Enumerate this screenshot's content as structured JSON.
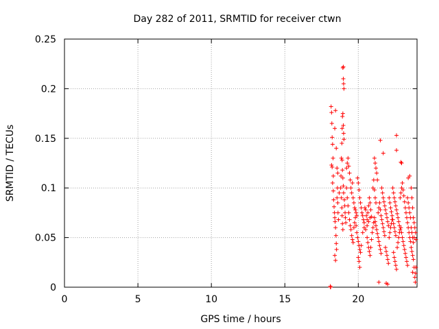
{
  "chart_data": {
    "type": "scatter",
    "title": "Day 282 of 2011, SRMTID for receiver ctwn",
    "xlabel": "GPS time / hours",
    "ylabel": "SRMTID / TECUs",
    "xlim": [
      0,
      24
    ],
    "ylim": [
      0,
      0.25
    ],
    "xticks": [
      0,
      5,
      10,
      15,
      20
    ],
    "yticks": [
      0,
      0.05,
      0.1,
      0.15,
      0.2,
      0.25
    ],
    "xtick_labels": [
      "0",
      "5",
      "10",
      "15",
      "20"
    ],
    "ytick_labels": [
      "0",
      "0.05",
      "0.1",
      "0.15",
      "0.2",
      "0.25"
    ],
    "grid": true,
    "marker": "+",
    "series_color": "#ff0000",
    "grid_color": "#a0a0a0",
    "series": [
      {
        "name": "SRMTID",
        "points": [
          [
            18.1,
            0.0
          ],
          [
            18.1,
            0.001
          ],
          [
            18.12,
            0.0
          ],
          [
            18.15,
            0.182
          ],
          [
            18.18,
            0.176
          ],
          [
            18.2,
            0.165
          ],
          [
            18.22,
            0.151
          ],
          [
            18.25,
            0.144
          ],
          [
            18.18,
            0.123
          ],
          [
            18.22,
            0.121
          ],
          [
            18.28,
            0.13
          ],
          [
            18.3,
            0.112
          ],
          [
            18.25,
            0.105
          ],
          [
            18.3,
            0.097
          ],
          [
            18.32,
            0.088
          ],
          [
            18.35,
            0.081
          ],
          [
            18.38,
            0.075
          ],
          [
            18.4,
            0.07
          ],
          [
            18.42,
            0.066
          ],
          [
            18.45,
            0.06
          ],
          [
            18.48,
            0.052
          ],
          [
            18.5,
            0.044
          ],
          [
            18.52,
            0.038
          ],
          [
            18.4,
            0.032
          ],
          [
            18.45,
            0.027
          ],
          [
            18.55,
            0.09
          ],
          [
            18.58,
            0.1
          ],
          [
            18.6,
            0.085
          ],
          [
            18.62,
            0.075
          ],
          [
            18.65,
            0.068
          ],
          [
            18.4,
            0.16
          ],
          [
            18.45,
            0.178
          ],
          [
            18.5,
            0.14
          ],
          [
            18.55,
            0.12
          ],
          [
            18.6,
            0.115
          ],
          [
            18.7,
            0.095
          ],
          [
            18.8,
            0.1
          ],
          [
            18.82,
            0.112
          ],
          [
            18.85,
            0.13
          ],
          [
            18.88,
            0.145
          ],
          [
            18.9,
            0.16
          ],
          [
            18.92,
            0.172
          ],
          [
            18.95,
            0.175
          ],
          [
            18.98,
            0.163
          ],
          [
            19.0,
            0.155
          ],
          [
            19.02,
            0.149
          ],
          [
            18.95,
            0.221
          ],
          [
            18.98,
            0.222
          ],
          [
            18.98,
            0.21
          ],
          [
            19.0,
            0.205
          ],
          [
            19.02,
            0.2
          ],
          [
            18.9,
            0.128
          ],
          [
            18.92,
            0.118
          ],
          [
            18.95,
            0.11
          ],
          [
            18.98,
            0.102
          ],
          [
            19.0,
            0.095
          ],
          [
            19.05,
            0.088
          ],
          [
            19.08,
            0.082
          ],
          [
            19.1,
            0.075
          ],
          [
            19.12,
            0.07
          ],
          [
            19.15,
            0.065
          ],
          [
            18.85,
            0.09
          ],
          [
            18.88,
            0.08
          ],
          [
            18.9,
            0.072
          ],
          [
            18.92,
            0.064
          ],
          [
            18.95,
            0.058
          ],
          [
            19.2,
            0.12
          ],
          [
            19.25,
            0.125
          ],
          [
            19.3,
            0.13
          ],
          [
            19.35,
            0.122
          ],
          [
            19.4,
            0.115
          ],
          [
            19.45,
            0.108
          ],
          [
            19.5,
            0.1
          ],
          [
            19.55,
            0.095
          ],
          [
            19.6,
            0.105
          ],
          [
            19.65,
            0.09
          ],
          [
            19.7,
            0.085
          ],
          [
            19.75,
            0.08
          ],
          [
            19.8,
            0.078
          ],
          [
            19.85,
            0.075
          ],
          [
            19.9,
            0.072
          ],
          [
            19.2,
            0.1
          ],
          [
            19.25,
            0.09
          ],
          [
            19.3,
            0.082
          ],
          [
            19.35,
            0.075
          ],
          [
            19.4,
            0.068
          ],
          [
            19.45,
            0.062
          ],
          [
            19.5,
            0.058
          ],
          [
            19.55,
            0.052
          ],
          [
            19.6,
            0.048
          ],
          [
            19.65,
            0.045
          ],
          [
            19.7,
            0.06
          ],
          [
            19.75,
            0.065
          ],
          [
            19.8,
            0.07
          ],
          [
            19.85,
            0.062
          ],
          [
            19.9,
            0.055
          ],
          [
            19.95,
            0.05
          ],
          [
            20.0,
            0.046
          ],
          [
            20.05,
            0.042
          ],
          [
            20.1,
            0.038
          ],
          [
            20.15,
            0.035
          ],
          [
            19.95,
            0.11
          ],
          [
            20.0,
            0.105
          ],
          [
            20.05,
            0.098
          ],
          [
            20.1,
            0.09
          ],
          [
            20.15,
            0.085
          ],
          [
            20.2,
            0.08
          ],
          [
            20.25,
            0.075
          ],
          [
            20.3,
            0.072
          ],
          [
            20.35,
            0.068
          ],
          [
            20.4,
            0.065
          ],
          [
            20.0,
            0.03
          ],
          [
            20.05,
            0.026
          ],
          [
            20.1,
            0.02
          ],
          [
            20.2,
            0.042
          ],
          [
            20.3,
            0.055
          ],
          [
            20.4,
            0.06
          ],
          [
            20.5,
            0.058
          ],
          [
            20.6,
            0.062
          ],
          [
            20.7,
            0.066
          ],
          [
            20.8,
            0.07
          ],
          [
            20.45,
            0.08
          ],
          [
            20.5,
            0.078
          ],
          [
            20.55,
            0.072
          ],
          [
            20.6,
            0.068
          ],
          [
            20.65,
            0.075
          ],
          [
            20.7,
            0.082
          ],
          [
            20.75,
            0.09
          ],
          [
            20.8,
            0.085
          ],
          [
            20.85,
            0.078
          ],
          [
            20.9,
            0.071
          ],
          [
            20.6,
            0.05
          ],
          [
            20.65,
            0.045
          ],
          [
            20.7,
            0.04
          ],
          [
            20.75,
            0.036
          ],
          [
            20.8,
            0.032
          ],
          [
            20.85,
            0.04
          ],
          [
            20.9,
            0.048
          ],
          [
            20.95,
            0.055
          ],
          [
            21.0,
            0.06
          ],
          [
            21.05,
            0.065
          ],
          [
            21.0,
            0.1
          ],
          [
            21.05,
            0.108
          ],
          [
            21.1,
            0.098
          ],
          [
            21.15,
            0.09
          ],
          [
            21.2,
            0.085
          ],
          [
            21.1,
            0.13
          ],
          [
            21.15,
            0.125
          ],
          [
            21.2,
            0.12
          ],
          [
            21.25,
            0.115
          ],
          [
            21.3,
            0.108
          ],
          [
            21.1,
            0.07
          ],
          [
            21.15,
            0.066
          ],
          [
            21.2,
            0.062
          ],
          [
            21.25,
            0.058
          ],
          [
            21.3,
            0.054
          ],
          [
            21.35,
            0.05
          ],
          [
            21.4,
            0.046
          ],
          [
            21.45,
            0.042
          ],
          [
            21.5,
            0.038
          ],
          [
            21.55,
            0.034
          ],
          [
            21.35,
            0.075
          ],
          [
            21.4,
            0.08
          ],
          [
            21.45,
            0.085
          ],
          [
            21.5,
            0.078
          ],
          [
            21.55,
            0.072
          ],
          [
            21.6,
            0.068
          ],
          [
            21.65,
            0.064
          ],
          [
            21.7,
            0.06
          ],
          [
            21.75,
            0.056
          ],
          [
            21.8,
            0.052
          ],
          [
            21.5,
            0.148
          ],
          [
            21.7,
            0.135
          ],
          [
            21.4,
            0.005
          ],
          [
            21.9,
            0.004
          ],
          [
            22.0,
            0.003
          ],
          [
            21.6,
            0.1
          ],
          [
            21.65,
            0.095
          ],
          [
            21.7,
            0.09
          ],
          [
            21.75,
            0.086
          ],
          [
            21.8,
            0.082
          ],
          [
            21.85,
            0.078
          ],
          [
            21.9,
            0.074
          ],
          [
            21.95,
            0.07
          ],
          [
            22.0,
            0.066
          ],
          [
            22.05,
            0.062
          ],
          [
            21.85,
            0.04
          ],
          [
            21.9,
            0.036
          ],
          [
            21.95,
            0.032
          ],
          [
            22.0,
            0.028
          ],
          [
            22.05,
            0.024
          ],
          [
            22.1,
            0.05
          ],
          [
            22.15,
            0.055
          ],
          [
            22.2,
            0.06
          ],
          [
            22.25,
            0.064
          ],
          [
            22.3,
            0.068
          ],
          [
            22.1,
            0.09
          ],
          [
            22.15,
            0.085
          ],
          [
            22.2,
            0.08
          ],
          [
            22.25,
            0.076
          ],
          [
            22.3,
            0.072
          ],
          [
            22.35,
            0.068
          ],
          [
            22.4,
            0.064
          ],
          [
            22.45,
            0.06
          ],
          [
            22.5,
            0.056
          ],
          [
            22.55,
            0.052
          ],
          [
            22.35,
            0.1
          ],
          [
            22.4,
            0.095
          ],
          [
            22.45,
            0.09
          ],
          [
            22.5,
            0.086
          ],
          [
            22.55,
            0.082
          ],
          [
            22.6,
            0.078
          ],
          [
            22.65,
            0.074
          ],
          [
            22.7,
            0.07
          ],
          [
            22.75,
            0.066
          ],
          [
            22.8,
            0.062
          ],
          [
            22.4,
            0.035
          ],
          [
            22.45,
            0.03
          ],
          [
            22.5,
            0.026
          ],
          [
            22.55,
            0.022
          ],
          [
            22.6,
            0.018
          ],
          [
            22.65,
            0.04
          ],
          [
            22.7,
            0.045
          ],
          [
            22.75,
            0.05
          ],
          [
            22.8,
            0.055
          ],
          [
            22.85,
            0.058
          ],
          [
            22.6,
            0.153
          ],
          [
            22.6,
            0.138
          ],
          [
            22.9,
            0.126
          ],
          [
            22.95,
            0.125
          ],
          [
            22.85,
            0.09
          ],
          [
            22.9,
            0.095
          ],
          [
            22.95,
            0.1
          ],
          [
            23.0,
            0.105
          ],
          [
            23.05,
            0.098
          ],
          [
            23.1,
            0.092
          ],
          [
            23.15,
            0.086
          ],
          [
            23.2,
            0.08
          ],
          [
            23.25,
            0.075
          ],
          [
            23.3,
            0.07
          ],
          [
            22.9,
            0.06
          ],
          [
            22.95,
            0.055
          ],
          [
            23.0,
            0.05
          ],
          [
            23.05,
            0.046
          ],
          [
            23.1,
            0.042
          ],
          [
            23.15,
            0.038
          ],
          [
            23.2,
            0.034
          ],
          [
            23.25,
            0.03
          ],
          [
            23.3,
            0.026
          ],
          [
            23.35,
            0.022
          ],
          [
            23.35,
            0.065
          ],
          [
            23.4,
            0.06
          ],
          [
            23.45,
            0.055
          ],
          [
            23.5,
            0.05
          ],
          [
            23.55,
            0.046
          ],
          [
            23.35,
            0.09
          ],
          [
            23.4,
            0.085
          ],
          [
            23.45,
            0.08
          ],
          [
            23.5,
            0.075
          ],
          [
            23.55,
            0.07
          ],
          [
            23.4,
            0.11
          ],
          [
            23.5,
            0.112
          ],
          [
            23.6,
            0.1
          ],
          [
            23.65,
            0.09
          ],
          [
            23.7,
            0.08
          ],
          [
            23.6,
            0.04
          ],
          [
            23.65,
            0.036
          ],
          [
            23.7,
            0.032
          ],
          [
            23.75,
            0.028
          ],
          [
            23.8,
            0.02
          ],
          [
            23.6,
            0.06
          ],
          [
            23.65,
            0.055
          ],
          [
            23.7,
            0.05
          ],
          [
            23.75,
            0.045
          ],
          [
            23.8,
            0.05
          ],
          [
            23.75,
            0.07
          ],
          [
            23.8,
            0.065
          ],
          [
            23.85,
            0.06
          ],
          [
            23.9,
            0.055
          ],
          [
            23.92,
            0.048
          ],
          [
            23.85,
            0.01
          ],
          [
            23.88,
            0.005
          ],
          [
            23.9,
            0.014
          ],
          [
            23.92,
            0.02
          ],
          [
            23.7,
            0.015
          ]
        ]
      }
    ]
  }
}
